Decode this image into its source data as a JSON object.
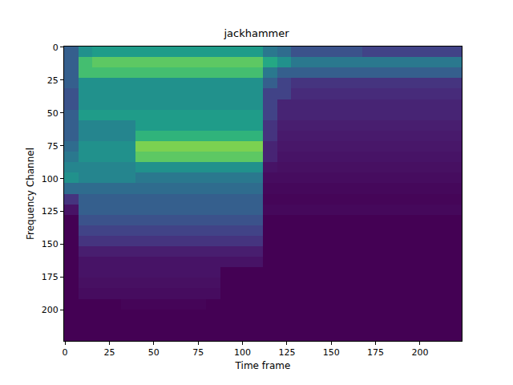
{
  "chart_data": {
    "type": "heatmap",
    "title": "jackhammer",
    "x_label": "Time frame",
    "y_label": "Frequency Channel",
    "xlim": [
      -0.5,
      223.5
    ],
    "ylim": [
      223.5,
      -0.5
    ],
    "xticks": [
      0,
      25,
      50,
      75,
      100,
      125,
      150,
      175,
      200
    ],
    "yticks": [
      0,
      25,
      50,
      75,
      100,
      125,
      150,
      175,
      200
    ],
    "zlim": [
      0,
      1
    ],
    "color": "Viridis",
    "grid": false,
    "x": [
      3.5,
      11.5,
      19.5,
      27.5,
      35.5,
      43.5,
      51.5,
      59.5,
      67.5,
      75.5,
      83.5,
      91.5,
      99.5,
      107.5,
      115.5,
      123.5,
      131.5,
      139.5,
      147.5,
      155.5,
      163.5,
      171.5,
      179.5,
      187.5,
      195.5,
      203.5,
      211.5,
      219.5
    ],
    "y": [
      3.5,
      11.5,
      19.5,
      27.5,
      35.5,
      43.5,
      51.5,
      59.5,
      67.5,
      75.5,
      83.5,
      91.5,
      99.5,
      107.5,
      115.5,
      123.5,
      131.5,
      139.5,
      147.5,
      155.5,
      163.5,
      171.5,
      179.5,
      187.5,
      195.5,
      203.5,
      211.5,
      219.5
    ],
    "z": [
      [
        0.3,
        0.5,
        0.55,
        0.55,
        0.55,
        0.55,
        0.55,
        0.55,
        0.55,
        0.55,
        0.55,
        0.55,
        0.55,
        0.55,
        0.4,
        0.35,
        0.25,
        0.25,
        0.25,
        0.25,
        0.25,
        0.2,
        0.2,
        0.2,
        0.2,
        0.2,
        0.2,
        0.2
      ],
      [
        0.3,
        0.7,
        0.75,
        0.75,
        0.75,
        0.75,
        0.75,
        0.75,
        0.75,
        0.75,
        0.75,
        0.75,
        0.75,
        0.75,
        0.6,
        0.5,
        0.4,
        0.4,
        0.4,
        0.4,
        0.4,
        0.4,
        0.4,
        0.4,
        0.4,
        0.4,
        0.4,
        0.4
      ],
      [
        0.3,
        0.7,
        0.7,
        0.7,
        0.7,
        0.7,
        0.7,
        0.7,
        0.7,
        0.7,
        0.7,
        0.7,
        0.7,
        0.7,
        0.4,
        0.3,
        0.3,
        0.3,
        0.3,
        0.3,
        0.3,
        0.3,
        0.3,
        0.3,
        0.3,
        0.3,
        0.3,
        0.3
      ],
      [
        0.3,
        0.5,
        0.5,
        0.5,
        0.5,
        0.5,
        0.5,
        0.5,
        0.5,
        0.5,
        0.5,
        0.5,
        0.5,
        0.5,
        0.3,
        0.2,
        0.15,
        0.15,
        0.15,
        0.15,
        0.15,
        0.15,
        0.15,
        0.15,
        0.15,
        0.15,
        0.15,
        0.15
      ],
      [
        0.25,
        0.5,
        0.5,
        0.5,
        0.5,
        0.5,
        0.5,
        0.5,
        0.5,
        0.5,
        0.5,
        0.5,
        0.5,
        0.5,
        0.2,
        0.2,
        0.12,
        0.12,
        0.12,
        0.12,
        0.12,
        0.12,
        0.12,
        0.12,
        0.12,
        0.12,
        0.12,
        0.12
      ],
      [
        0.25,
        0.5,
        0.5,
        0.5,
        0.5,
        0.5,
        0.5,
        0.5,
        0.5,
        0.5,
        0.5,
        0.5,
        0.5,
        0.5,
        0.2,
        0.1,
        0.1,
        0.1,
        0.1,
        0.1,
        0.1,
        0.1,
        0.1,
        0.1,
        0.1,
        0.1,
        0.1,
        0.1
      ],
      [
        0.3,
        0.55,
        0.55,
        0.55,
        0.55,
        0.55,
        0.55,
        0.55,
        0.55,
        0.55,
        0.55,
        0.55,
        0.55,
        0.55,
        0.2,
        0.1,
        0.1,
        0.1,
        0.1,
        0.1,
        0.1,
        0.1,
        0.1,
        0.1,
        0.1,
        0.1,
        0.1,
        0.1
      ],
      [
        0.3,
        0.45,
        0.45,
        0.45,
        0.45,
        0.55,
        0.55,
        0.55,
        0.55,
        0.55,
        0.55,
        0.55,
        0.55,
        0.55,
        0.15,
        0.08,
        0.08,
        0.08,
        0.08,
        0.08,
        0.08,
        0.08,
        0.08,
        0.08,
        0.08,
        0.08,
        0.08,
        0.08
      ],
      [
        0.3,
        0.45,
        0.45,
        0.45,
        0.45,
        0.65,
        0.65,
        0.65,
        0.65,
        0.65,
        0.65,
        0.65,
        0.65,
        0.65,
        0.15,
        0.07,
        0.07,
        0.07,
        0.07,
        0.07,
        0.07,
        0.07,
        0.07,
        0.07,
        0.07,
        0.07,
        0.07,
        0.07
      ],
      [
        0.35,
        0.5,
        0.5,
        0.5,
        0.5,
        0.8,
        0.8,
        0.8,
        0.8,
        0.8,
        0.8,
        0.8,
        0.8,
        0.8,
        0.1,
        0.06,
        0.06,
        0.06,
        0.06,
        0.06,
        0.06,
        0.06,
        0.06,
        0.06,
        0.06,
        0.06,
        0.06,
        0.06
      ],
      [
        0.4,
        0.5,
        0.5,
        0.5,
        0.5,
        0.75,
        0.75,
        0.75,
        0.75,
        0.75,
        0.75,
        0.75,
        0.75,
        0.75,
        0.1,
        0.05,
        0.05,
        0.05,
        0.05,
        0.05,
        0.05,
        0.05,
        0.05,
        0.05,
        0.05,
        0.05,
        0.05,
        0.05
      ],
      [
        0.45,
        0.45,
        0.45,
        0.45,
        0.45,
        0.5,
        0.5,
        0.5,
        0.5,
        0.5,
        0.5,
        0.5,
        0.5,
        0.5,
        0.05,
        0.04,
        0.04,
        0.04,
        0.04,
        0.04,
        0.04,
        0.04,
        0.04,
        0.04,
        0.04,
        0.04,
        0.04,
        0.04
      ],
      [
        0.5,
        0.45,
        0.45,
        0.45,
        0.45,
        0.4,
        0.4,
        0.4,
        0.4,
        0.4,
        0.4,
        0.4,
        0.4,
        0.4,
        0.03,
        0.03,
        0.03,
        0.03,
        0.03,
        0.03,
        0.03,
        0.03,
        0.03,
        0.03,
        0.03,
        0.03,
        0.03,
        0.03
      ],
      [
        0.35,
        0.35,
        0.35,
        0.35,
        0.35,
        0.35,
        0.35,
        0.35,
        0.35,
        0.35,
        0.35,
        0.35,
        0.35,
        0.35,
        0.02,
        0.02,
        0.02,
        0.02,
        0.02,
        0.02,
        0.02,
        0.02,
        0.02,
        0.02,
        0.02,
        0.02,
        0.02,
        0.02
      ],
      [
        0.15,
        0.3,
        0.3,
        0.3,
        0.3,
        0.3,
        0.3,
        0.3,
        0.3,
        0.3,
        0.3,
        0.3,
        0.3,
        0.3,
        0.01,
        0.01,
        0.01,
        0.01,
        0.01,
        0.01,
        0.01,
        0.01,
        0.01,
        0.01,
        0.01,
        0.01,
        0.01,
        0.01
      ],
      [
        0.05,
        0.3,
        0.3,
        0.3,
        0.3,
        0.3,
        0.3,
        0.3,
        0.3,
        0.3,
        0.3,
        0.3,
        0.3,
        0.3,
        0.02,
        0.02,
        0.02,
        0.02,
        0.02,
        0.02,
        0.02,
        0.02,
        0.02,
        0.02,
        0.02,
        0.02,
        0.02,
        0.02
      ],
      [
        0,
        0.25,
        0.25,
        0.25,
        0.25,
        0.25,
        0.25,
        0.25,
        0.25,
        0.25,
        0.25,
        0.25,
        0.25,
        0.25,
        0,
        0,
        0,
        0,
        0,
        0,
        0,
        0,
        0,
        0,
        0,
        0,
        0,
        0
      ],
      [
        0,
        0.2,
        0.2,
        0.2,
        0.2,
        0.2,
        0.2,
        0.2,
        0.2,
        0.2,
        0.2,
        0.2,
        0.2,
        0.2,
        0,
        0,
        0,
        0,
        0,
        0,
        0,
        0,
        0,
        0,
        0,
        0,
        0,
        0
      ],
      [
        0,
        0.15,
        0.15,
        0.15,
        0.15,
        0.15,
        0.15,
        0.15,
        0.15,
        0.15,
        0.15,
        0.15,
        0.15,
        0.15,
        0,
        0,
        0,
        0,
        0,
        0,
        0,
        0,
        0,
        0,
        0,
        0,
        0,
        0
      ],
      [
        0,
        0.08,
        0.08,
        0.08,
        0.08,
        0.08,
        0.08,
        0.08,
        0.08,
        0.08,
        0.08,
        0.08,
        0.08,
        0.08,
        0,
        0,
        0,
        0,
        0,
        0,
        0,
        0,
        0,
        0,
        0,
        0,
        0,
        0
      ],
      [
        0,
        0.05,
        0.05,
        0.05,
        0.05,
        0.05,
        0.05,
        0.05,
        0.05,
        0.05,
        0.05,
        0.05,
        0.05,
        0.05,
        0,
        0,
        0,
        0,
        0,
        0,
        0,
        0,
        0,
        0,
        0,
        0,
        0,
        0
      ],
      [
        0,
        0.05,
        0.05,
        0.05,
        0.05,
        0.05,
        0.05,
        0.05,
        0.05,
        0.05,
        0.05,
        0,
        0,
        0,
        0,
        0,
        0,
        0,
        0,
        0,
        0,
        0,
        0,
        0,
        0,
        0,
        0,
        0
      ],
      [
        0,
        0.04,
        0.04,
        0.04,
        0.04,
        0.04,
        0.04,
        0.04,
        0.04,
        0.04,
        0.04,
        0,
        0,
        0,
        0,
        0,
        0,
        0,
        0,
        0,
        0,
        0,
        0,
        0,
        0,
        0,
        0,
        0
      ],
      [
        0,
        0.03,
        0.03,
        0.03,
        0.03,
        0.03,
        0.03,
        0.03,
        0.03,
        0.03,
        0.03,
        0,
        0,
        0,
        0,
        0,
        0,
        0,
        0,
        0,
        0,
        0,
        0,
        0,
        0,
        0,
        0,
        0
      ],
      [
        0,
        0,
        0,
        0,
        0.01,
        0.01,
        0.01,
        0.01,
        0.01,
        0.01,
        0,
        0,
        0,
        0,
        0,
        0,
        0,
        0,
        0,
        0,
        0,
        0,
        0,
        0,
        0,
        0,
        0,
        0
      ],
      [
        0,
        0,
        0,
        0,
        0,
        0,
        0,
        0,
        0,
        0,
        0,
        0,
        0,
        0,
        0,
        0,
        0,
        0,
        0,
        0,
        0,
        0,
        0,
        0,
        0,
        0,
        0,
        0
      ],
      [
        0,
        0,
        0,
        0,
        0,
        0,
        0,
        0,
        0,
        0,
        0,
        0,
        0,
        0,
        0,
        0,
        0,
        0,
        0,
        0,
        0,
        0,
        0,
        0,
        0,
        0,
        0,
        0
      ],
      [
        0,
        0,
        0,
        0,
        0,
        0,
        0,
        0,
        0,
        0,
        0,
        0,
        0,
        0,
        0,
        0,
        0,
        0,
        0,
        0,
        0,
        0,
        0,
        0,
        0,
        0,
        0,
        0
      ]
    ]
  }
}
